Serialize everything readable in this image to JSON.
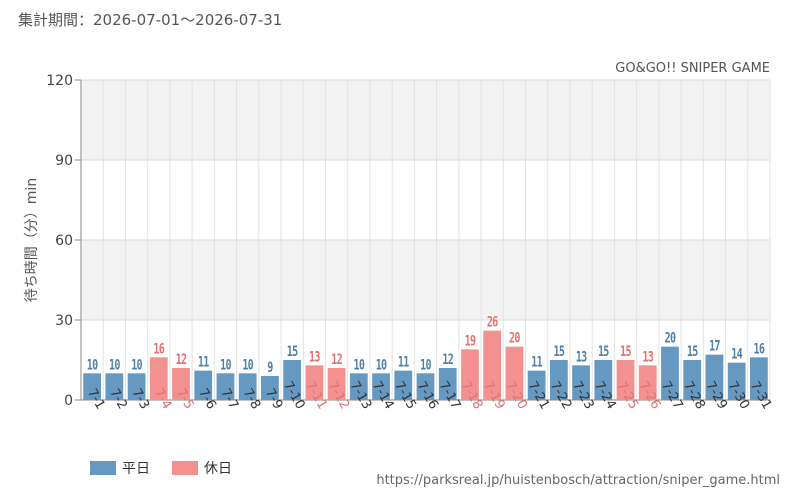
{
  "period_label": "集計期間：2026-07-01～2026-07-31",
  "source_url": "https://parksreal.jp/huistenbosch/attraction/sniper_game.html",
  "colors": {
    "weekday": "#6699c2",
    "holiday": "#f39191",
    "weekday_label": "#4f7fa9",
    "holiday_label": "#e46f6f"
  },
  "chart_data": {
    "type": "bar",
    "title": "GO&GO!! SNIPER GAME",
    "ylabel": "待ち時間（分）min",
    "xlabel": "",
    "ylim": [
      0,
      120
    ],
    "yticks": [
      0,
      30,
      60,
      90,
      120
    ],
    "grid": true,
    "legend": [
      {
        "name": "平日",
        "kind": "weekday"
      },
      {
        "name": "休日",
        "kind": "holiday"
      }
    ],
    "legend_position": "bottom-left",
    "categories": [
      "7-1",
      "7-2",
      "7-3",
      "7-4",
      "7-5",
      "7-6",
      "7-7",
      "7-8",
      "7-9",
      "7-10",
      "7-11",
      "7-12",
      "7-13",
      "7-14",
      "7-15",
      "7-16",
      "7-17",
      "7-18",
      "7-19",
      "7-20",
      "7-21",
      "7-22",
      "7-23",
      "7-24",
      "7-25",
      "7-26",
      "7-27",
      "7-28",
      "7-29",
      "7-30",
      "7-31"
    ],
    "values": [
      10,
      10,
      10,
      16,
      12,
      11,
      10,
      10,
      9,
      15,
      13,
      12,
      10,
      10,
      11,
      10,
      12,
      19,
      26,
      20,
      11,
      15,
      13,
      15,
      15,
      13,
      20,
      15,
      17,
      14,
      16
    ],
    "kinds": [
      "weekday",
      "weekday",
      "weekday",
      "holiday",
      "holiday",
      "weekday",
      "weekday",
      "weekday",
      "weekday",
      "weekday",
      "holiday",
      "holiday",
      "weekday",
      "weekday",
      "weekday",
      "weekday",
      "weekday",
      "holiday",
      "holiday",
      "holiday",
      "weekday",
      "weekday",
      "weekday",
      "weekday",
      "holiday",
      "holiday",
      "weekday",
      "weekday",
      "weekday",
      "weekday",
      "weekday"
    ]
  }
}
